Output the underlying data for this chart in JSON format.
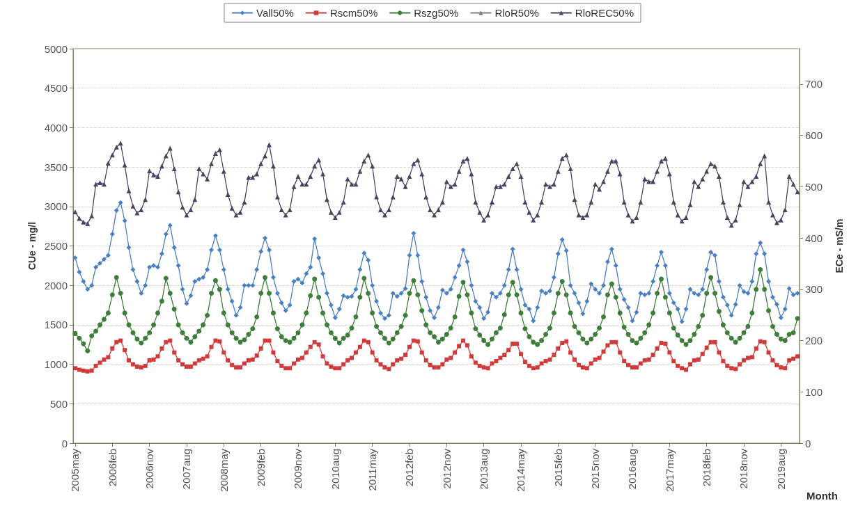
{
  "chart_data": {
    "type": "line",
    "xlabel": "Month",
    "ylabel": "CUe - mg/l",
    "y2label": "ECe - mS/m",
    "categories": [
      "2005may",
      null,
      null,
      null,
      null,
      null,
      null,
      null,
      null,
      "2006feb",
      null,
      null,
      null,
      null,
      null,
      null,
      null,
      null,
      "2006nov",
      null,
      null,
      null,
      null,
      null,
      null,
      null,
      null,
      "2007aug",
      null,
      null,
      null,
      null,
      null,
      null,
      null,
      null,
      "2008may",
      null,
      null,
      null,
      null,
      null,
      null,
      null,
      null,
      "2009feb",
      null,
      null,
      null,
      null,
      null,
      null,
      null,
      null,
      "2009nov",
      null,
      null,
      null,
      null,
      null,
      null,
      null,
      null,
      "2010aug",
      null,
      null,
      null,
      null,
      null,
      null,
      null,
      null,
      "2011may",
      null,
      null,
      null,
      null,
      null,
      null,
      null,
      null,
      "2012feb",
      null,
      null,
      null,
      null,
      null,
      null,
      null,
      null,
      "2012nov",
      null,
      null,
      null,
      null,
      null,
      null,
      null,
      null,
      "2013aug",
      null,
      null,
      null,
      null,
      null,
      null,
      null,
      null,
      "2014may",
      null,
      null,
      null,
      null,
      null,
      null,
      null,
      null,
      "2015feb",
      null,
      null,
      null,
      null,
      null,
      null,
      null,
      null,
      "2015nov",
      null,
      null,
      null,
      null,
      null,
      null,
      null,
      null,
      "2016aug",
      null,
      null,
      null,
      null,
      null,
      null,
      null,
      null,
      "2017may",
      null,
      null,
      null,
      null,
      null,
      null,
      null,
      null,
      "2018feb",
      null,
      null,
      null,
      null,
      null,
      null,
      null,
      null,
      "2018nov",
      null,
      null,
      null,
      null,
      null,
      null,
      null,
      null,
      "2019aug",
      null,
      null,
      null,
      null
    ],
    "series": [
      {
        "name": "Vall50%",
        "color": "#4a7fc1",
        "marker": "diamond",
        "values": [
          2350,
          2170,
          2050,
          1950,
          2000,
          2230,
          2280,
          2330,
          2380,
          2650,
          2950,
          3050,
          2820,
          2480,
          2200,
          2050,
          1900,
          2000,
          2230,
          2250,
          2230,
          2400,
          2650,
          2760,
          2480,
          2250,
          1950,
          1770,
          1870,
          2050,
          2080,
          2100,
          2200,
          2450,
          2630,
          2450,
          2200,
          1950,
          1800,
          1620,
          1720,
          2000,
          2000,
          2000,
          2200,
          2430,
          2600,
          2450,
          2100,
          1900,
          1780,
          1680,
          1750,
          2050,
          2080,
          2030,
          2150,
          2230,
          2590,
          2350,
          2150,
          1900,
          1750,
          1590,
          1700,
          1870,
          1850,
          1860,
          1950,
          2200,
          2410,
          2320,
          2000,
          1800,
          1650,
          1580,
          1620,
          1900,
          1860,
          1900,
          1960,
          2380,
          2660,
          2380,
          2050,
          1850,
          1680,
          1590,
          1720,
          1940,
          1900,
          1950,
          2100,
          2250,
          2450,
          2300,
          2000,
          1800,
          1720,
          1580,
          1660,
          1900,
          1850,
          1900,
          2000,
          2200,
          2460,
          2200,
          1950,
          1750,
          1700,
          1550,
          1720,
          1930,
          1900,
          1930,
          2100,
          2400,
          2580,
          2440,
          2000,
          1900,
          1780,
          1640,
          1800,
          2020,
          1950,
          1900,
          2000,
          2300,
          2460,
          2250,
          1950,
          1820,
          1720,
          1550,
          1660,
          1900,
          1880,
          1900,
          2050,
          2250,
          2420,
          2250,
          1900,
          1780,
          1700,
          1540,
          1700,
          1950,
          1900,
          1880,
          1950,
          2200,
          2420,
          2380,
          2050,
          1850,
          1750,
          1620,
          1760,
          2000,
          1920,
          1900,
          2050,
          2400,
          2540,
          2400,
          2050,
          1850,
          1760,
          1590,
          1700,
          1960,
          1880,
          1900
        ]
      },
      {
        "name": "Rscm50%",
        "color": "#d03a3a",
        "marker": "square",
        "values": [
          950,
          930,
          920,
          910,
          920,
          980,
          1020,
          1060,
          1090,
          1200,
          1280,
          1300,
          1180,
          1050,
          1000,
          970,
          960,
          980,
          1050,
          1060,
          1100,
          1200,
          1280,
          1300,
          1150,
          1050,
          1000,
          970,
          970,
          1010,
          1050,
          1070,
          1100,
          1220,
          1300,
          1290,
          1150,
          1050,
          990,
          960,
          960,
          1010,
          1050,
          1060,
          1110,
          1200,
          1300,
          1300,
          1150,
          1040,
          980,
          950,
          950,
          1010,
          1060,
          1080,
          1150,
          1220,
          1280,
          1250,
          1100,
          1010,
          970,
          950,
          950,
          1000,
          1050,
          1080,
          1150,
          1220,
          1300,
          1280,
          1150,
          1050,
          1000,
          960,
          940,
          1000,
          1050,
          1070,
          1120,
          1220,
          1300,
          1290,
          1150,
          1050,
          990,
          960,
          960,
          1000,
          1060,
          1080,
          1150,
          1230,
          1300,
          1240,
          1100,
          1020,
          980,
          960,
          950,
          1010,
          1040,
          1080,
          1120,
          1180,
          1260,
          1260,
          1130,
          1030,
          980,
          950,
          960,
          1010,
          1040,
          1060,
          1120,
          1200,
          1270,
          1290,
          1150,
          1060,
          990,
          960,
          950,
          1010,
          1060,
          1080,
          1160,
          1240,
          1280,
          1280,
          1150,
          1040,
          990,
          960,
          960,
          1010,
          1050,
          1060,
          1120,
          1200,
          1270,
          1260,
          1150,
          1040,
          980,
          950,
          930,
          1000,
          1050,
          1060,
          1130,
          1210,
          1280,
          1280,
          1150,
          1040,
          980,
          950,
          940,
          1000,
          1050,
          1080,
          1090,
          1200,
          1290,
          1280,
          1150,
          1050,
          990,
          960,
          950,
          1050,
          1070,
          1100
        ]
      },
      {
        "name": "Rszg50%",
        "color": "#3e7d3a",
        "marker": "circle",
        "values": [
          1390,
          1330,
          1260,
          1170,
          1360,
          1420,
          1500,
          1570,
          1650,
          1880,
          2100,
          1900,
          1650,
          1500,
          1400,
          1320,
          1270,
          1330,
          1400,
          1500,
          1650,
          1800,
          2090,
          1900,
          1700,
          1500,
          1400,
          1330,
          1280,
          1350,
          1420,
          1500,
          1620,
          1900,
          2060,
          1950,
          1650,
          1500,
          1400,
          1330,
          1280,
          1310,
          1380,
          1450,
          1600,
          1900,
          2100,
          1900,
          1650,
          1450,
          1350,
          1300,
          1280,
          1330,
          1400,
          1500,
          1650,
          1870,
          2080,
          1850,
          1650,
          1500,
          1400,
          1330,
          1270,
          1330,
          1370,
          1460,
          1600,
          1850,
          2090,
          1900,
          1650,
          1480,
          1400,
          1330,
          1270,
          1320,
          1400,
          1480,
          1620,
          1900,
          2060,
          1880,
          1680,
          1500,
          1400,
          1350,
          1280,
          1320,
          1380,
          1460,
          1600,
          1860,
          2040,
          1880,
          1650,
          1450,
          1370,
          1300,
          1250,
          1320,
          1400,
          1460,
          1630,
          1880,
          2040,
          1880,
          1650,
          1450,
          1350,
          1280,
          1250,
          1300,
          1380,
          1460,
          1650,
          1900,
          2050,
          1880,
          1650,
          1480,
          1400,
          1320,
          1270,
          1320,
          1380,
          1460,
          1600,
          1880,
          2020,
          1850,
          1650,
          1470,
          1380,
          1300,
          1270,
          1330,
          1400,
          1500,
          1650,
          1900,
          2080,
          1850,
          1650,
          1460,
          1370,
          1300,
          1250,
          1300,
          1380,
          1480,
          1620,
          1900,
          2100,
          1900,
          1670,
          1500,
          1400,
          1330,
          1280,
          1330,
          1400,
          1480,
          1650,
          1950,
          2200,
          1950,
          1680,
          1480,
          1380,
          1320,
          1300,
          1380,
          1400,
          1580
        ]
      },
      {
        "name": "RloR50%",
        "color": "#808080",
        "marker": "triangle",
        "axis": "y2",
        "values": [
          null,
          null,
          null,
          null,
          null,
          null,
          null,
          null,
          null,
          null,
          null,
          null,
          null,
          null,
          null,
          null,
          null,
          null,
          null,
          null,
          null,
          null,
          null,
          null,
          null,
          null,
          null,
          null,
          null,
          null,
          null,
          null,
          null,
          null,
          null,
          null,
          null,
          null,
          null,
          null,
          null,
          null,
          null,
          null,
          null,
          null,
          null,
          null,
          null,
          null,
          null,
          null,
          null,
          null,
          null,
          null,
          null,
          null,
          null,
          null,
          null,
          null,
          null,
          null,
          null,
          null,
          null,
          null,
          null,
          null,
          null,
          null,
          null,
          null,
          null,
          null,
          null,
          null,
          null,
          null,
          null,
          null,
          null,
          null,
          null,
          null,
          null,
          null,
          null,
          null,
          null,
          null,
          null,
          null,
          null,
          null,
          null,
          null,
          null,
          null,
          null,
          null,
          null,
          null,
          null,
          null,
          null,
          null,
          null,
          null,
          null,
          null,
          null,
          null,
          null,
          null,
          null,
          null,
          null,
          null,
          null,
          null,
          null,
          null,
          null,
          null,
          null,
          null,
          null,
          null,
          null,
          null,
          null,
          null,
          null,
          null,
          null,
          null,
          null,
          null,
          null,
          null,
          null,
          null,
          null,
          null,
          null,
          null,
          null,
          null,
          null,
          null,
          null,
          null,
          null,
          null,
          null,
          null,
          null,
          null,
          null,
          null,
          null,
          null,
          null,
          null,
          null,
          null,
          null,
          null,
          null,
          null,
          null,
          null,
          null,
          null
        ]
      },
      {
        "name": "RloREC50%",
        "color": "#4a4460",
        "marker": "triangle",
        "axis": "y2",
        "values": [
          451,
          438,
          431,
          428,
          443,
          505,
          508,
          505,
          546,
          562,
          577,
          585,
          542,
          492,
          462,
          449,
          455,
          475,
          531,
          523,
          520,
          540,
          560,
          575,
          535,
          490,
          460,
          445,
          455,
          475,
          535,
          525,
          515,
          545,
          565,
          572,
          530,
          485,
          458,
          445,
          450,
          470,
          518,
          518,
          525,
          545,
          560,
          582,
          540,
          480,
          455,
          445,
          455,
          500,
          520,
          505,
          505,
          520,
          540,
          552,
          525,
          475,
          450,
          440,
          450,
          470,
          515,
          505,
          505,
          530,
          550,
          562,
          540,
          480,
          455,
          445,
          455,
          480,
          520,
          515,
          500,
          520,
          545,
          552,
          525,
          480,
          455,
          445,
          455,
          470,
          510,
          500,
          505,
          530,
          550,
          555,
          525,
          470,
          450,
          435,
          445,
          470,
          500,
          500,
          505,
          520,
          535,
          545,
          520,
          470,
          450,
          435,
          445,
          470,
          505,
          500,
          505,
          530,
          555,
          562,
          535,
          475,
          445,
          440,
          445,
          470,
          505,
          495,
          510,
          530,
          550,
          550,
          525,
          470,
          445,
          433,
          440,
          470,
          515,
          510,
          510,
          530,
          550,
          555,
          525,
          470,
          445,
          433,
          440,
          465,
          510,
          500,
          515,
          530,
          545,
          540,
          520,
          470,
          440,
          425,
          435,
          465,
          510,
          500,
          510,
          520,
          545,
          560,
          470,
          445,
          430,
          435,
          455,
          520,
          505,
          490
        ]
      }
    ],
    "ylim": [
      0,
      5000
    ],
    "yticks": [
      0,
      500,
      1000,
      1500,
      2000,
      2500,
      3000,
      3500,
      4000,
      4500,
      5000
    ],
    "y2lim": [
      0,
      769
    ],
    "y2ticks": [
      0,
      100,
      200,
      300,
      400,
      500,
      600,
      700
    ],
    "grid": "y",
    "legend": "top"
  }
}
